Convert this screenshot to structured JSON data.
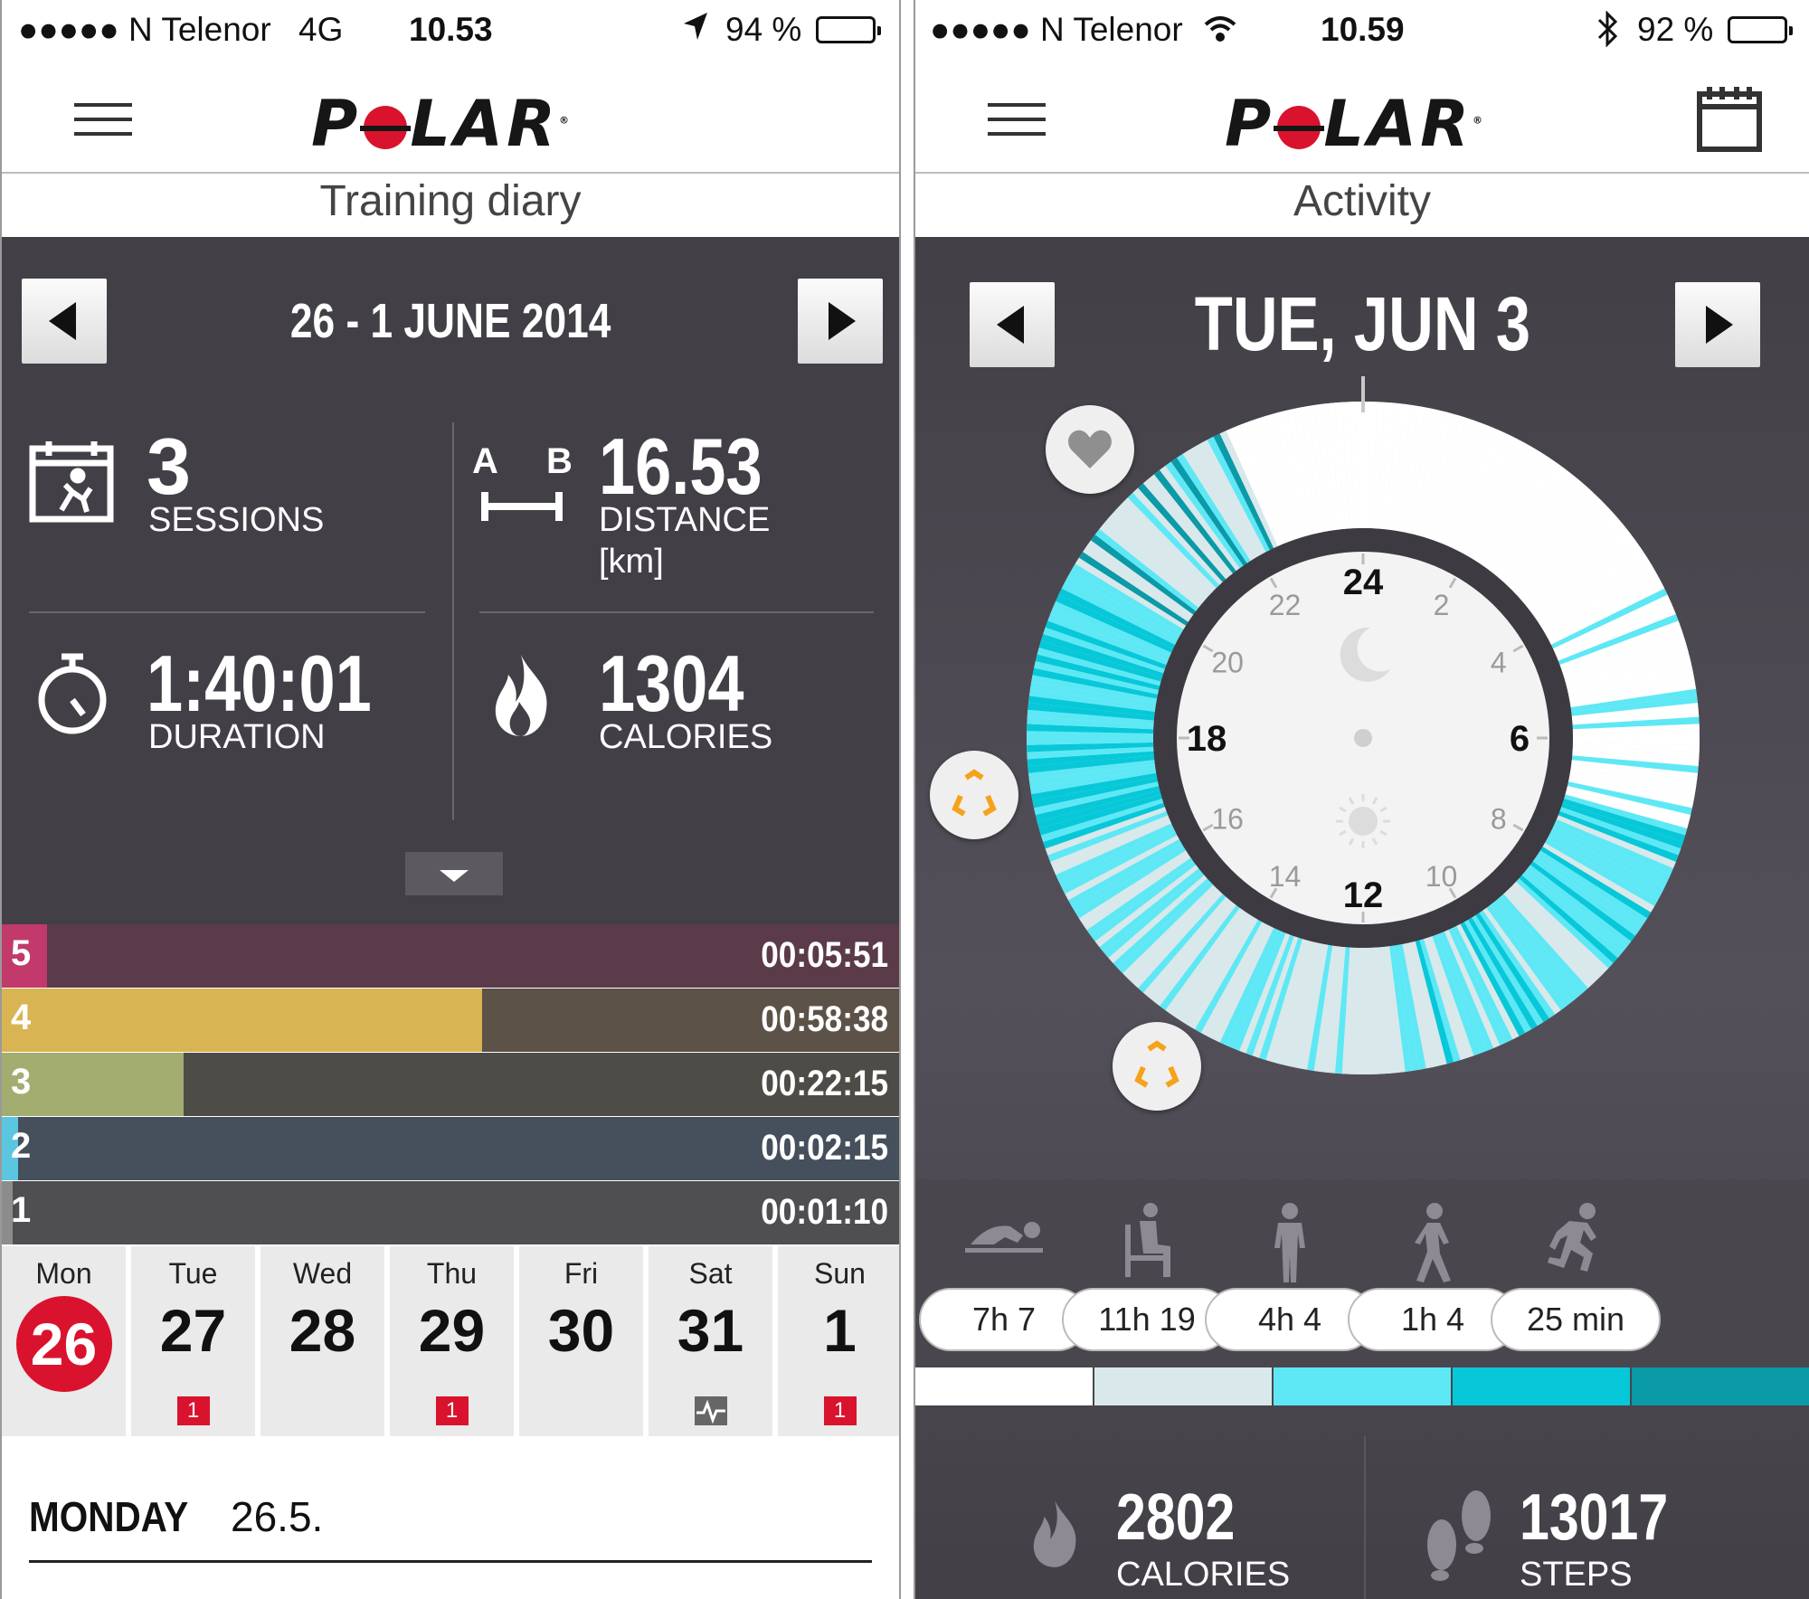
{
  "left_screen": {
    "status": {
      "carrier": "●●●●● N Telenor",
      "network": "4G",
      "time": "10.53",
      "battery": "94 %"
    },
    "logo": "POLAR",
    "title": "Training diary",
    "week_range": "26 - 1 JUNE 2014",
    "stats": {
      "sessions": {
        "value": "3",
        "label": "SESSIONS"
      },
      "distance": {
        "value": "16.53",
        "label": "DISTANCE",
        "unit": "[km]",
        "icon_a": "A",
        "icon_b": "B"
      },
      "duration": {
        "value": "1:40:01",
        "label": "DURATION"
      },
      "calories": {
        "value": "1304",
        "label": "CALORIES"
      }
    },
    "zones": [
      {
        "zone": "5",
        "time": "00:05:51",
        "fraction": 0.05,
        "color": "#c13a6b",
        "bg": "#5b3a4a"
      },
      {
        "zone": "4",
        "time": "00:58:38",
        "fraction": 0.535,
        "color": "#d8b552",
        "bg": "#5c5248"
      },
      {
        "zone": "3",
        "time": "00:22:15",
        "fraction": 0.203,
        "color": "#a3ad70",
        "bg": "#4e4c47"
      },
      {
        "zone": "2",
        "time": "00:02:15",
        "fraction": 0.018,
        "color": "#5bc6e0",
        "bg": "#45505c"
      },
      {
        "zone": "1",
        "time": "00:01:10",
        "fraction": 0.008,
        "color": "#8c8c8c",
        "bg": "#4f4f52"
      }
    ],
    "days": [
      {
        "name": "Mon",
        "date": "26",
        "today": true,
        "badge": ""
      },
      {
        "name": "Tue",
        "date": "27",
        "today": false,
        "badge": "1"
      },
      {
        "name": "Wed",
        "date": "28",
        "today": false,
        "badge": ""
      },
      {
        "name": "Thu",
        "date": "29",
        "today": false,
        "badge": "1"
      },
      {
        "name": "Fri",
        "date": "30",
        "today": false,
        "badge": ""
      },
      {
        "name": "Sat",
        "date": "31",
        "today": false,
        "badge": "heart-rate-icon"
      },
      {
        "name": "Sun",
        "date": "1",
        "today": false,
        "badge": "1"
      }
    ],
    "day_detail": {
      "weekday": "MONDAY",
      "date": "26.5."
    }
  },
  "right_screen": {
    "status": {
      "carrier": "●●●●● N Telenor",
      "time": "10.59",
      "battery": "92 %"
    },
    "logo": "POLAR",
    "title": "Activity",
    "date": "TUE, JUN 3",
    "clock_hours": [
      "24",
      "2",
      "4",
      "6",
      "8",
      "10",
      "12",
      "14",
      "16",
      "18",
      "20",
      "22"
    ],
    "activity_levels": [
      {
        "icon": "lying-icon",
        "duration": "7h 7",
        "color": "#ffffff"
      },
      {
        "icon": "sitting-icon",
        "duration": "11h 19",
        "color": "#d9e8ea"
      },
      {
        "icon": "standing-icon",
        "duration": "4h 4",
        "color": "#5ee8f5"
      },
      {
        "icon": "walking-icon",
        "duration": "1h 4",
        "color": "#07c8d8"
      },
      {
        "icon": "running-icon",
        "duration": "25 min",
        "color": "#0a9aa8"
      }
    ],
    "calories": {
      "value": "2802",
      "label": "CALORIES"
    },
    "steps": {
      "value": "13017",
      "label": "STEPS"
    }
  }
}
